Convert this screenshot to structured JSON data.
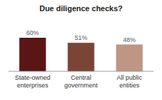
{
  "chart_data": {
    "type": "bar",
    "title": "Due diligence checks?",
    "categories": [
      "State-owned\nenterprises",
      "Central\ngovernment",
      "All public\nentities"
    ],
    "values": [
      60,
      51,
      48
    ],
    "value_labels": [
      "60%",
      "51%",
      "48%"
    ],
    "colors": [
      "#5B1515",
      "#7B4535",
      "#BF9585"
    ],
    "ylim": [
      0,
      90
    ],
    "data_labels": true,
    "grid": false,
    "tick_labels": "x"
  }
}
